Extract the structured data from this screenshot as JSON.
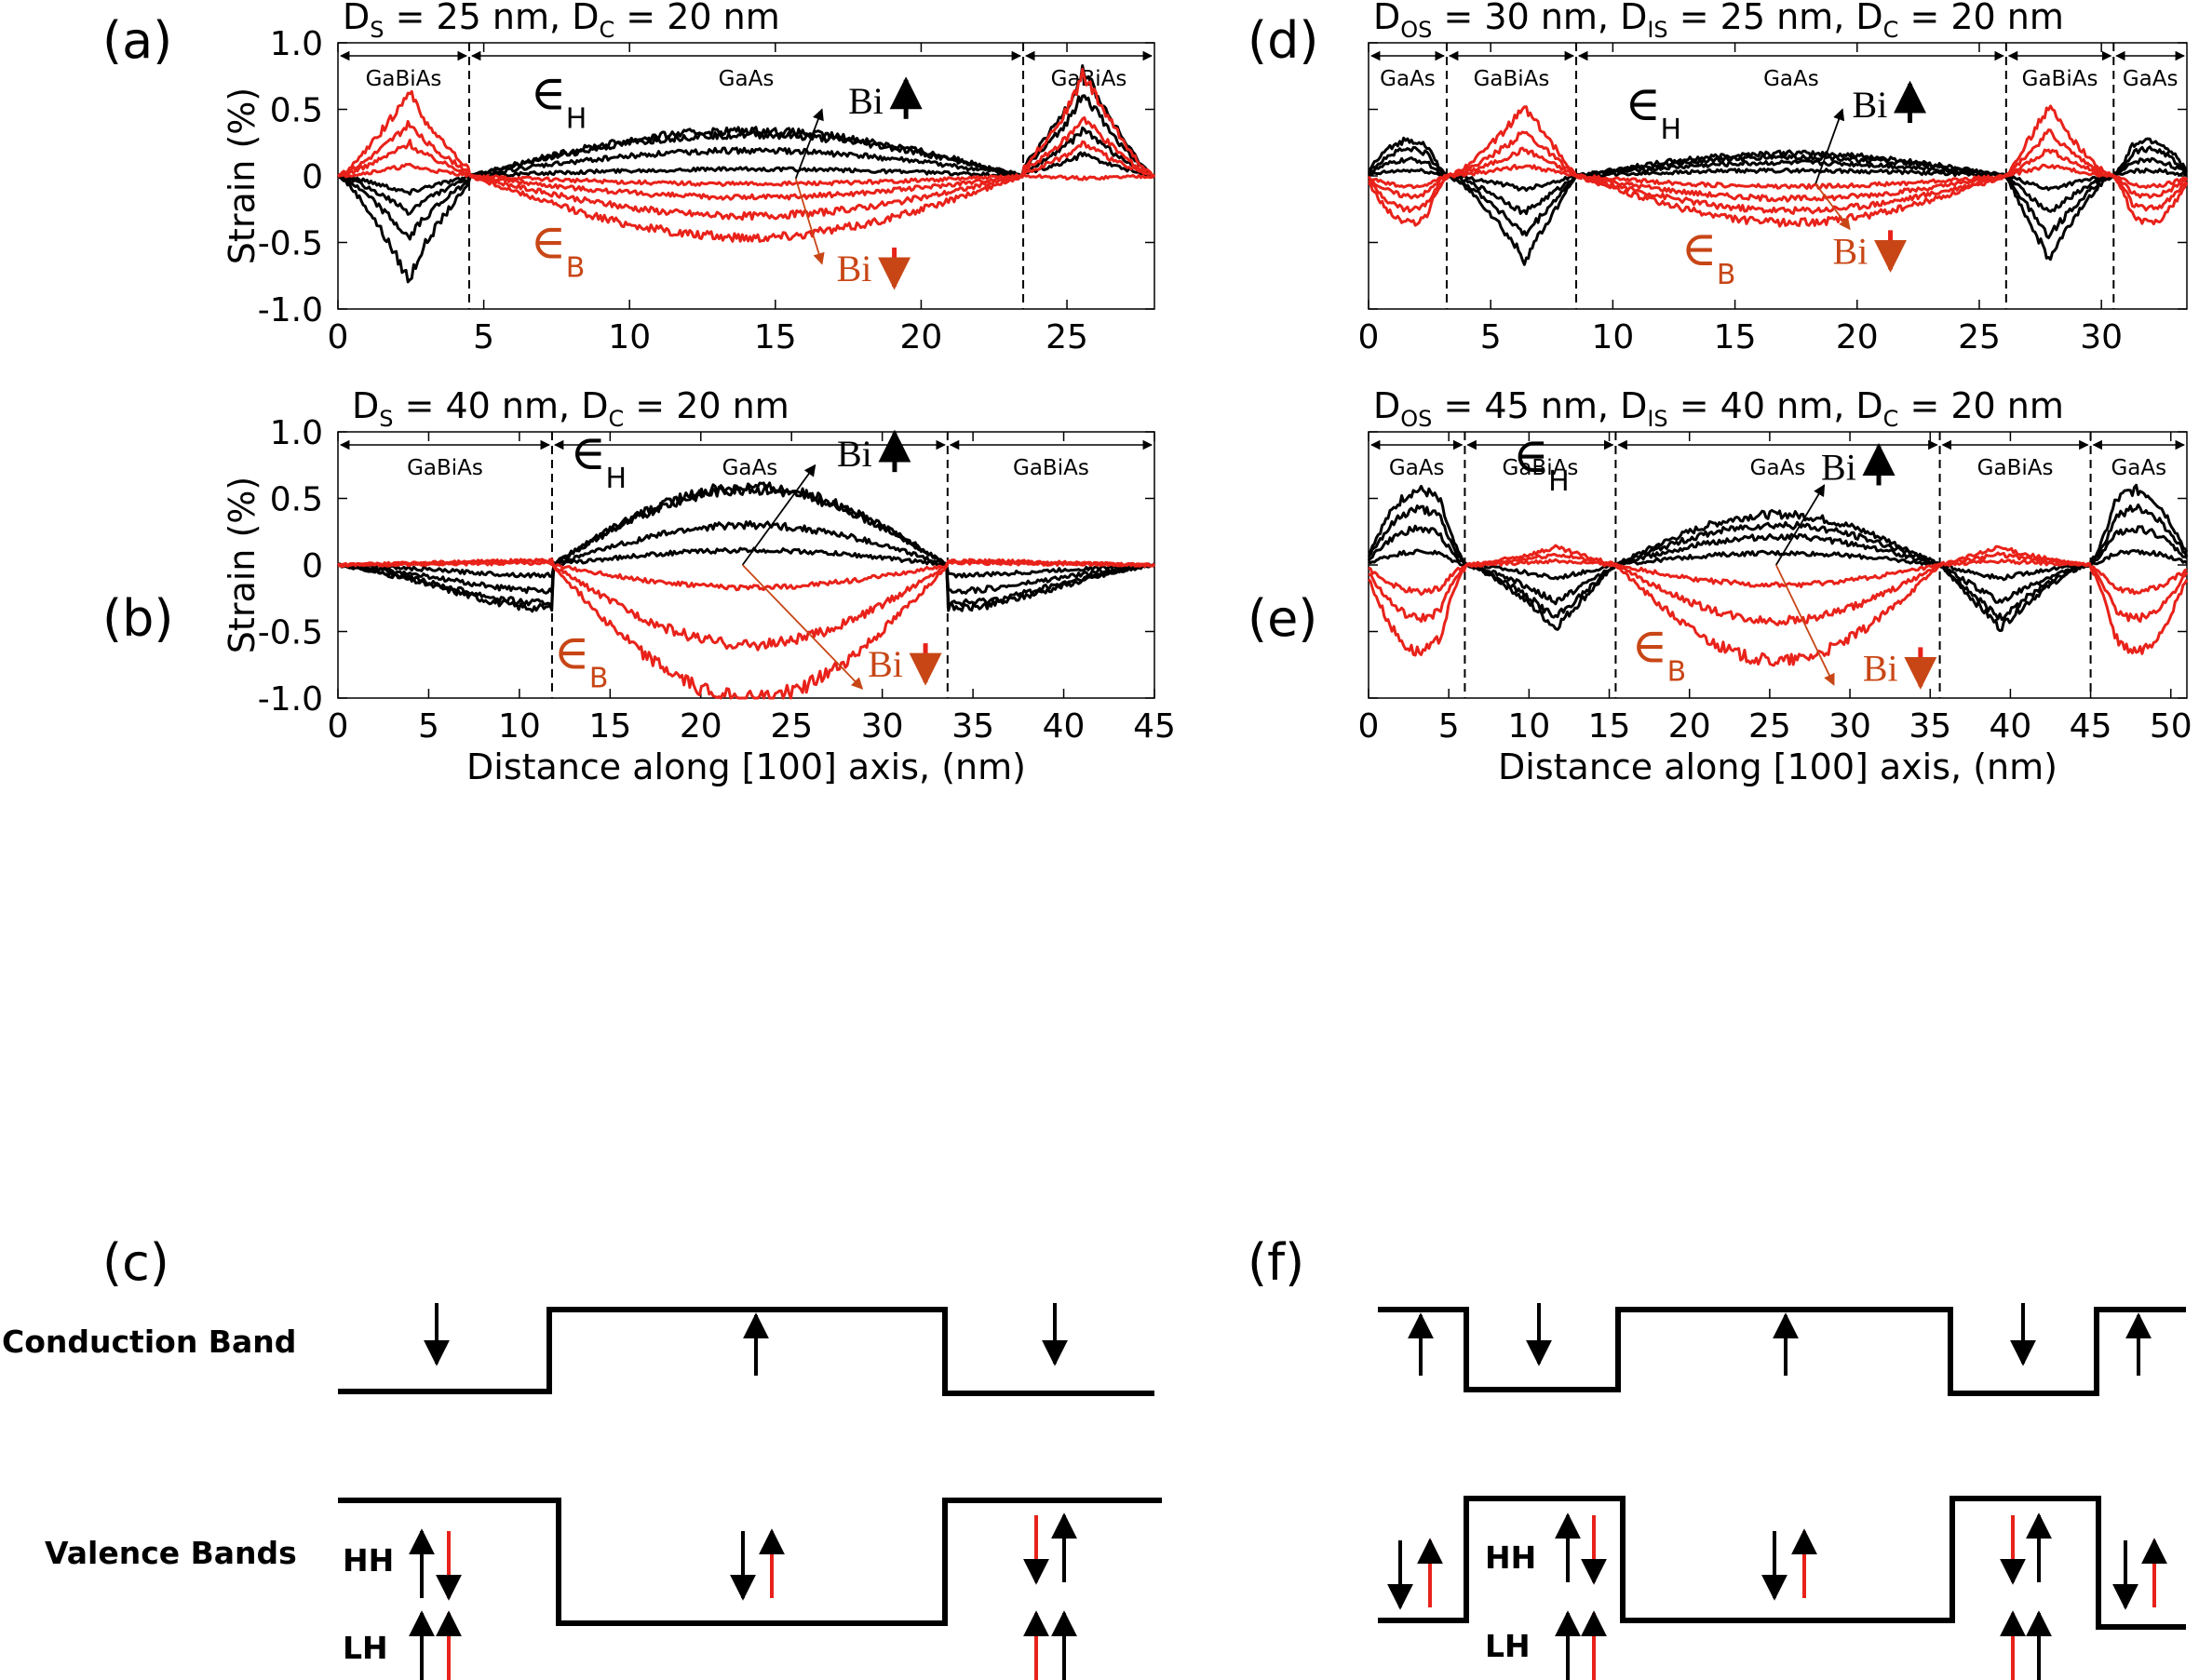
{
  "colors": {
    "black": "#000000",
    "red": "#e8221a",
    "eps_b": "#c84616"
  },
  "labels": {
    "panel_a": "(a)",
    "panel_b": "(b)",
    "panel_c": "(c)",
    "panel_d": "(d)",
    "panel_e": "(e)",
    "panel_f": "(f)",
    "cb": "Conduction Band",
    "vb": "Valence Bands",
    "hh": "HH",
    "lh": "LH",
    "eps_sym": "∈",
    "eps_h_sub": "H",
    "eps_b_sub": "B",
    "bi": "Bi"
  },
  "chart_data": [
    {
      "id": "a",
      "type": "line",
      "title": "D_S = 25 nm, D_C = 20 nm",
      "title_parts": [
        [
          "D",
          "n"
        ],
        [
          "S",
          "s"
        ],
        [
          " = 25 nm, D",
          "n"
        ],
        [
          "C",
          "s"
        ],
        [
          " = 20 nm",
          "n"
        ]
      ],
      "xlabel": "",
      "ylabel": "Strain (%)",
      "xlim": [
        0,
        28
      ],
      "ylim": [
        -1.0,
        1.0
      ],
      "xticks": [
        0,
        5,
        10,
        15,
        20,
        25
      ],
      "yticks": [
        -1.0,
        -0.5,
        0,
        0.5,
        1.0
      ],
      "ytick_labels": [
        "-1.0",
        "-0.5",
        "0",
        "0.5",
        "1.0"
      ],
      "boundaries": [
        4.5,
        23.5
      ],
      "regions": [
        {
          "label": "GaBiAs",
          "from": 0,
          "to": 4.5
        },
        {
          "label": "GaAs",
          "from": 4.5,
          "to": 23.5
        },
        {
          "label": "GaBiAs",
          "from": 23.5,
          "to": 28
        }
      ],
      "annot": {
        "eps_h": [
          6.6,
          0.5
        ],
        "eps_b": [
          6.6,
          -0.62
        ],
        "bi_up": [
          17.5,
          0.47
        ],
        "bi_down": [
          17.1,
          -0.79
        ],
        "arrow_up": [
          [
            15.7,
            -0.02
          ],
          [
            16.6,
            0.5
          ]
        ],
        "arrow_down": [
          [
            15.7,
            -0.02
          ],
          [
            16.6,
            -0.66
          ]
        ]
      },
      "series": [
        {
          "name": "εH Bi1",
          "color": "black",
          "edge_lo": -0.13,
          "edge_hi": 0.17,
          "center": 0.05
        },
        {
          "name": "εH Bi2",
          "color": "black",
          "edge_lo": -0.28,
          "edge_hi": 0.36,
          "center": 0.19
        },
        {
          "name": "εH Bi3",
          "color": "black",
          "edge_lo": -0.48,
          "edge_hi": 0.64,
          "center": 0.31
        },
        {
          "name": "εH Bi4",
          "color": "black",
          "edge_lo": -0.8,
          "edge_hi": 0.82,
          "center": 0.34
        },
        {
          "name": "εB Bi1",
          "color": "red",
          "edge_lo": 0.08,
          "edge_hi": -0.02,
          "center": -0.06
        },
        {
          "name": "εB Bi2",
          "color": "red",
          "edge_lo": 0.25,
          "edge_hi": 0.25,
          "center": -0.16
        },
        {
          "name": "εB Bi3",
          "color": "red",
          "edge_lo": 0.4,
          "edge_hi": 0.45,
          "center": -0.3
        },
        {
          "name": "εB Bi4",
          "color": "red",
          "edge_lo": 0.65,
          "edge_hi": 0.78,
          "center": -0.46
        }
      ]
    },
    {
      "id": "b",
      "type": "line",
      "title": "D_S = 40 nm, D_C = 20 nm",
      "title_parts": [
        [
          "D",
          "n"
        ],
        [
          "S",
          "s"
        ],
        [
          " = 40 nm, D",
          "n"
        ],
        [
          "C",
          "s"
        ],
        [
          " = 20 nm",
          "n"
        ]
      ],
      "xlabel": "Distance along [100] axis, (nm)",
      "ylabel": "Strain (%)",
      "xlim": [
        0,
        45
      ],
      "ylim": [
        -1.0,
        1.0
      ],
      "xticks": [
        0,
        5,
        10,
        15,
        20,
        25,
        30,
        35,
        40,
        45
      ],
      "yticks": [
        -1.0,
        -0.5,
        0,
        0.5,
        1.0
      ],
      "ytick_labels": [
        "-1.0",
        "-0.5",
        "0",
        "0.5",
        "1.0"
      ],
      "boundaries": [
        11.8,
        33.6
      ],
      "regions": [
        {
          "label": "GaBiAs",
          "from": 0,
          "to": 11.8
        },
        {
          "label": "GaAs",
          "from": 11.8,
          "to": 33.6
        },
        {
          "label": "GaBiAs",
          "from": 33.6,
          "to": 45
        }
      ],
      "annot": {
        "eps_h": [
          12.8,
          0.72
        ],
        "eps_b": [
          11.9,
          -0.78
        ],
        "bi_up": [
          27.5,
          0.74
        ],
        "bi_down": [
          29.2,
          -0.84
        ],
        "arrow_up": [
          [
            22.3,
            0.0
          ],
          [
            26.3,
            0.75
          ]
        ],
        "arrow_down": [
          [
            22.3,
            0.0
          ],
          [
            28.9,
            -0.93
          ]
        ]
      },
      "series": [
        {
          "name": "εH Bi1",
          "color": "black",
          "edge": -0.1,
          "center": 0.11
        },
        {
          "name": "εH Bi2",
          "color": "black",
          "edge": -0.25,
          "center": 0.3
        },
        {
          "name": "εH Bi3",
          "color": "black",
          "edge": -0.37,
          "center": 0.59
        },
        {
          "name": "εH Bi4",
          "color": "black",
          "edge": -0.42,
          "center": 0.57
        },
        {
          "name": "εB Bi1",
          "color": "red",
          "edge": 0.02,
          "center": -0.17
        },
        {
          "name": "εB Bi2",
          "color": "red",
          "edge": 0.04,
          "center": -0.6
        },
        {
          "name": "εB Bi3",
          "color": "red",
          "edge": 0.04,
          "center": -1.0
        }
      ]
    },
    {
      "id": "d",
      "type": "line",
      "title": "D_OS = 30 nm, D_IS = 25 nm, D_C = 20 nm",
      "title_parts": [
        [
          "D",
          "n"
        ],
        [
          "OS",
          "s"
        ],
        [
          " = 30 nm, D",
          "n"
        ],
        [
          "IS",
          "s"
        ],
        [
          " = 25 nm, D",
          "n"
        ],
        [
          "C",
          "s"
        ],
        [
          " = 20 nm",
          "n"
        ]
      ],
      "xlabel": "",
      "ylabel": "",
      "xlim": [
        0,
        33.5
      ],
      "ylim": [
        -1.0,
        1.0
      ],
      "xticks": [
        0,
        5,
        10,
        15,
        20,
        25,
        30
      ],
      "yticks": [
        -1.0,
        -0.5,
        0,
        0.5,
        1.0
      ],
      "ytick_labels": [],
      "boundaries": [
        3.2,
        8.5,
        26.1,
        30.5
      ],
      "regions": [
        {
          "label": "GaAs",
          "from": 0,
          "to": 3.2
        },
        {
          "label": "GaBiAs",
          "from": 3.2,
          "to": 8.5
        },
        {
          "label": "GaAs",
          "from": 8.5,
          "to": 26.1
        },
        {
          "label": "GaBiAs",
          "from": 26.1,
          "to": 30.5
        },
        {
          "label": "GaAs",
          "from": 30.5,
          "to": 33.5
        }
      ],
      "annot": {
        "eps_h": [
          10.5,
          0.42
        ],
        "eps_b": [
          12.8,
          -0.67
        ],
        "bi_up": [
          19.8,
          0.44
        ],
        "bi_down": [
          19.0,
          -0.66
        ],
        "arrow_up": [
          [
            18.3,
            -0.06
          ],
          [
            19.4,
            0.5
          ]
        ],
        "arrow_down": [
          [
            18.3,
            -0.06
          ],
          [
            19.7,
            -0.4
          ]
        ]
      },
      "series": [
        {
          "name": "εH Bi1",
          "color": "black",
          "outer": 0.04,
          "shell": -0.1,
          "center": 0.04
        },
        {
          "name": "εH Bi2",
          "color": "black",
          "outer": 0.12,
          "shell": -0.28,
          "center": 0.1
        },
        {
          "name": "εH Bi3",
          "color": "black",
          "outer": 0.2,
          "shell": -0.45,
          "center": 0.14
        },
        {
          "name": "εH Bi4",
          "color": "black",
          "outer": 0.27,
          "shell": -0.63,
          "center": 0.17
        },
        {
          "name": "εB Bi1",
          "color": "red",
          "outer": -0.08,
          "shell": 0.08,
          "center": -0.08
        },
        {
          "name": "εB Bi2",
          "color": "red",
          "outer": -0.15,
          "shell": 0.2,
          "center": -0.17
        },
        {
          "name": "εB Bi3",
          "color": "red",
          "outer": -0.25,
          "shell": 0.33,
          "center": -0.26
        },
        {
          "name": "εB Bi4",
          "color": "red",
          "outer": -0.35,
          "shell": 0.52,
          "center": -0.35
        }
      ]
    },
    {
      "id": "e",
      "type": "line",
      "title": "D_OS = 45 nm, D_IS = 40 nm, D_C = 20 nm",
      "title_parts": [
        [
          "D",
          "n"
        ],
        [
          "OS",
          "s"
        ],
        [
          " = 45 nm, D",
          "n"
        ],
        [
          "IS",
          "s"
        ],
        [
          " = 40 nm, D",
          "n"
        ],
        [
          "C",
          "s"
        ],
        [
          " = 20 nm",
          "n"
        ]
      ],
      "xlabel": "Distance along [100] axis, (nm)",
      "ylabel": "",
      "xlim": [
        0,
        51
      ],
      "ylim": [
        -1.0,
        1.0
      ],
      "xticks": [
        0,
        5,
        10,
        15,
        20,
        25,
        30,
        35,
        40,
        45,
        50
      ],
      "yticks": [
        -1.0,
        -0.5,
        0,
        0.5,
        1.0
      ],
      "ytick_labels": [],
      "boundaries": [
        6.0,
        15.4,
        35.6,
        45.0
      ],
      "regions": [
        {
          "label": "GaAs",
          "from": 0,
          "to": 6.0
        },
        {
          "label": "GaBiAs",
          "from": 6.0,
          "to": 15.4
        },
        {
          "label": "GaAs",
          "from": 15.4,
          "to": 35.6
        },
        {
          "label": "GaBiAs",
          "from": 35.6,
          "to": 45.0
        },
        {
          "label": "GaAs",
          "from": 45.0,
          "to": 51
        }
      ],
      "annot": {
        "eps_h": [
          9,
          0.7
        ],
        "eps_b": [
          16.4,
          -0.73
        ],
        "bi_up": [
          28.2,
          0.64
        ],
        "bi_down": [
          30.8,
          -0.87
        ],
        "arrow_up": [
          [
            25.4,
            0.0
          ],
          [
            28.4,
            0.6
          ]
        ],
        "arrow_down": [
          [
            25.4,
            0.0
          ],
          [
            29.0,
            -0.9
          ]
        ]
      },
      "series": [
        {
          "name": "εH Bi1",
          "color": "black",
          "outer": 0.1,
          "shell": -0.1,
          "center": 0.09
        },
        {
          "name": "εH Bi2",
          "color": "black",
          "outer": 0.27,
          "shell": -0.28,
          "center": 0.21
        },
        {
          "name": "εH Bi3",
          "color": "black",
          "outer": 0.42,
          "shell": -0.4,
          "center": 0.3
        },
        {
          "name": "εH Bi4",
          "color": "black",
          "outer": 0.56,
          "shell": -0.47,
          "center": 0.38
        },
        {
          "name": "εB Bi1",
          "color": "red",
          "outer": -0.2,
          "shell": 0.03,
          "center": -0.15
        },
        {
          "name": "εB Bi2",
          "color": "red",
          "outer": -0.4,
          "shell": 0.08,
          "center": -0.42
        },
        {
          "name": "εB Bi3",
          "color": "red",
          "outer": -0.65,
          "shell": 0.13,
          "center": -0.72
        }
      ]
    }
  ]
}
